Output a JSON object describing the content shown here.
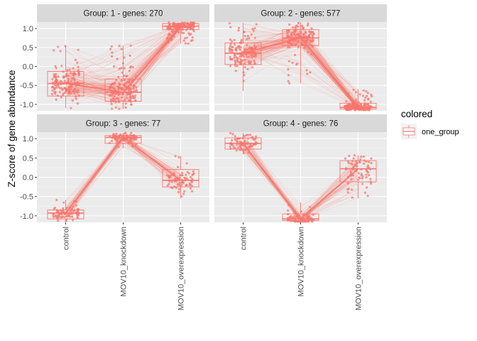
{
  "chart_data": {
    "type": "box",
    "ylabel": "Z-score of gene abundance",
    "xlabel": "",
    "categories": [
      "control",
      "MOV10_knockdown",
      "MOV10_overexpression"
    ],
    "ylim": [
      -1.17,
      1.17
    ],
    "yticks": [
      -1.0,
      -0.5,
      0.0,
      0.5,
      1.0
    ],
    "ytick_labels": [
      "-1.0",
      "-0.5",
      "0.0",
      "0.5",
      "1.0"
    ],
    "color": "#F8766D",
    "legend": {
      "title": "colored",
      "entries": [
        "one_group"
      ],
      "position": "right"
    },
    "panels": [
      {
        "label": "Group:  1 - genes: 270",
        "n_genes": 270,
        "boxes": [
          {
            "category": "control",
            "q1": -0.78,
            "median": -0.45,
            "q3": -0.13,
            "whisker_low": -1.1,
            "whisker_high": 0.55
          },
          {
            "category": "MOV10_knockdown",
            "q1": -0.92,
            "median": -0.68,
            "q3": -0.33,
            "whisker_low": -1.12,
            "whisker_high": 0.55
          },
          {
            "category": "MOV10_overexpression",
            "q1": 0.97,
            "median": 1.06,
            "q3": 1.13,
            "whisker_low": 0.6,
            "whisker_high": 1.16
          }
        ]
      },
      {
        "label": "Group:  2 - genes: 577",
        "n_genes": 577,
        "boxes": [
          {
            "category": "control",
            "q1": 0.05,
            "median": 0.35,
            "q3": 0.62,
            "whisker_low": -0.65,
            "whisker_high": 1.15
          },
          {
            "category": "MOV10_knockdown",
            "q1": 0.55,
            "median": 0.75,
            "q3": 0.97,
            "whisker_low": -0.45,
            "whisker_high": 1.16
          },
          {
            "category": "MOV10_overexpression",
            "q1": -1.12,
            "median": -1.08,
            "q3": -0.97,
            "whisker_low": -1.15,
            "whisker_high": -0.6
          }
        ]
      },
      {
        "label": "Group:  3 - genes: 77",
        "n_genes": 77,
        "boxes": [
          {
            "category": "control",
            "q1": -1.08,
            "median": -0.93,
            "q3": -0.85,
            "whisker_low": -1.15,
            "whisker_high": -0.58
          },
          {
            "category": "MOV10_knockdown",
            "q1": 0.88,
            "median": 1.03,
            "q3": 1.08,
            "whisker_low": 0.75,
            "whisker_high": 1.15
          },
          {
            "category": "MOV10_overexpression",
            "q1": -0.25,
            "median": -0.08,
            "q3": 0.2,
            "whisker_low": -0.55,
            "whisker_high": 0.55
          }
        ]
      },
      {
        "label": "Group:  4 - genes: 76",
        "n_genes": 76,
        "boxes": [
          {
            "category": "control",
            "q1": 0.73,
            "median": 0.88,
            "q3": 1.02,
            "whisker_low": 0.6,
            "whisker_high": 1.15
          },
          {
            "category": "MOV10_knockdown",
            "q1": -1.12,
            "median": -1.08,
            "q3": -0.95,
            "whisker_low": -1.15,
            "whisker_high": -0.65
          },
          {
            "category": "MOV10_overexpression",
            "q1": -0.12,
            "median": 0.22,
            "q3": 0.43,
            "whisker_low": -0.55,
            "whisker_high": 0.57
          }
        ]
      }
    ]
  }
}
